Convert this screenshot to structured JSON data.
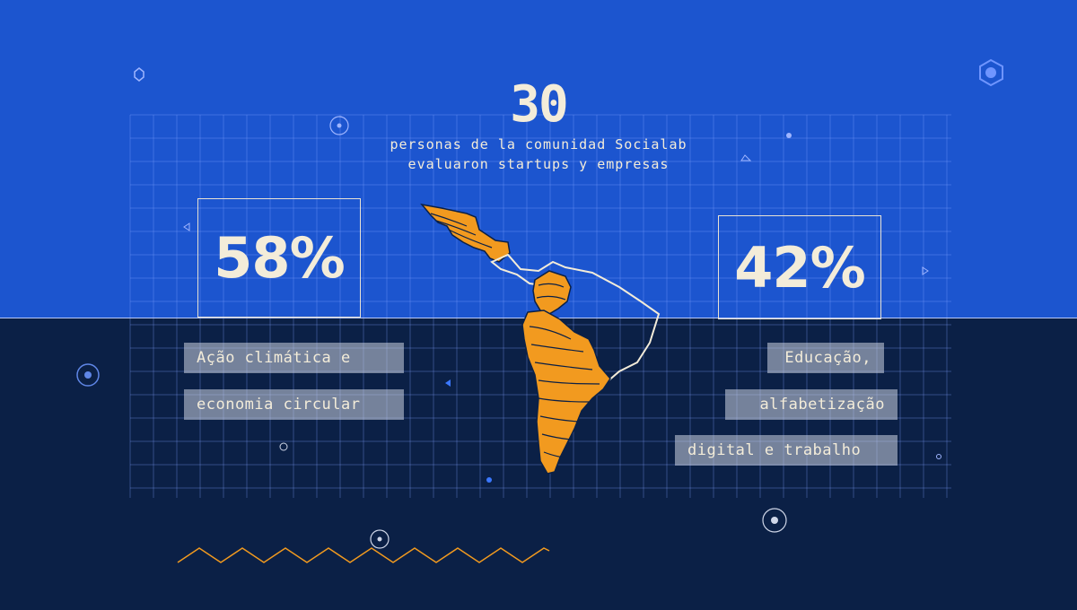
{
  "header": {
    "count": "30",
    "line1": "personas de la comunidad Socialab",
    "line2": "evaluaron  startups y empresas"
  },
  "left": {
    "percent": "58%",
    "tags": [
      "Ação climática e",
      "economia circular"
    ]
  },
  "right": {
    "percent": "42%",
    "tags": [
      "Educação,",
      "alfabetização",
      "digital e trabalho"
    ]
  },
  "colors": {
    "top_bg": "#1c55cf",
    "bottom_bg": "#0b2046",
    "accent_orange": "#f29a1f",
    "cream": "#f3ecd9"
  },
  "icons": [
    "hexagon-icon",
    "target-circle-icon",
    "triangle-icon",
    "zigzag-line-icon",
    "latin-america-map-icon"
  ]
}
